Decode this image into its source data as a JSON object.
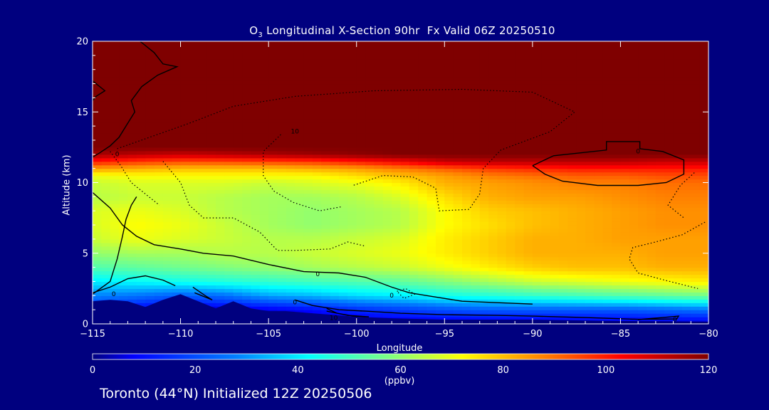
{
  "chart_data": {
    "type": "heatmap",
    "title_prefix": "O",
    "title_subscript": "3",
    "title_rest": " Longitudinal X-Section 90hr  Fx Valid 06Z 20250510",
    "xlabel": "Longitude",
    "ylabel": "Altitude (km)",
    "xlim": [
      -115,
      -80
    ],
    "ylim": [
      0,
      20
    ],
    "x_ticks": [
      -115,
      -110,
      -105,
      -100,
      -95,
      -90,
      -85,
      -80
    ],
    "x_tick_labels": [
      "−115",
      "−110",
      "−105",
      "−100",
      "−95",
      "−90",
      "−85",
      "−80"
    ],
    "y_ticks": [
      0,
      5,
      10,
      15,
      20
    ],
    "y_tick_labels": [
      "0",
      "5",
      "10",
      "15",
      "20"
    ],
    "colorbar": {
      "min": 0,
      "max": 120,
      "ticks": [
        0,
        20,
        40,
        60,
        80,
        100,
        120
      ],
      "tick_labels": [
        "0",
        "20",
        "40",
        "60",
        "80",
        "100",
        "120"
      ],
      "units": "(ppbv)",
      "stops": [
        {
          "v": 0,
          "color": "#00007f"
        },
        {
          "v": 8,
          "color": "#0000ff"
        },
        {
          "v": 28,
          "color": "#0080ff"
        },
        {
          "v": 42,
          "color": "#00ffff"
        },
        {
          "v": 58,
          "color": "#80ff80"
        },
        {
          "v": 72,
          "color": "#ffff00"
        },
        {
          "v": 88,
          "color": "#ff8000"
        },
        {
          "v": 103,
          "color": "#ff0000"
        },
        {
          "v": 120,
          "color": "#7f0000"
        }
      ]
    },
    "x_grid": [
      -115,
      -112.5,
      -110,
      -107.5,
      -105,
      -102.5,
      -100,
      -97.5,
      -95,
      -92.5,
      -90,
      -87.5,
      -85,
      -82.5,
      -80
    ],
    "y_grid": [
      0,
      1,
      2,
      3,
      4,
      5,
      6,
      7,
      8,
      9,
      10,
      10.5,
      11,
      11.5,
      12,
      12.5,
      13,
      14,
      16,
      20
    ],
    "values": [
      [
        3,
        3,
        3,
        3,
        3,
        3,
        3,
        3,
        3,
        3,
        3,
        3,
        3,
        3,
        3
      ],
      [
        12,
        6,
        3,
        4,
        6,
        9,
        14,
        17,
        20,
        22,
        22,
        22,
        22,
        24,
        26
      ],
      [
        28,
        26,
        22,
        25,
        32,
        34,
        38,
        40,
        44,
        46,
        48,
        50,
        52,
        54,
        56
      ],
      [
        40,
        42,
        44,
        46,
        48,
        50,
        52,
        54,
        58,
        62,
        66,
        68,
        70,
        72,
        74
      ],
      [
        52,
        54,
        56,
        58,
        60,
        62,
        64,
        66,
        70,
        74,
        78,
        80,
        80,
        82,
        82
      ],
      [
        60,
        62,
        62,
        64,
        64,
        66,
        68,
        70,
        74,
        78,
        82,
        82,
        82,
        84,
        84
      ],
      [
        66,
        70,
        68,
        66,
        64,
        64,
        66,
        68,
        74,
        78,
        82,
        82,
        84,
        84,
        84
      ],
      [
        68,
        72,
        70,
        66,
        62,
        60,
        62,
        64,
        72,
        76,
        80,
        82,
        84,
        86,
        86
      ],
      [
        68,
        70,
        68,
        64,
        62,
        60,
        62,
        64,
        72,
        78,
        80,
        82,
        84,
        86,
        86
      ],
      [
        64,
        66,
        66,
        64,
        62,
        62,
        64,
        68,
        76,
        82,
        84,
        84,
        86,
        88,
        88
      ],
      [
        66,
        68,
        68,
        68,
        66,
        68,
        70,
        74,
        82,
        84,
        86,
        88,
        88,
        90,
        90
      ],
      [
        70,
        72,
        72,
        72,
        72,
        72,
        76,
        80,
        84,
        88,
        90,
        92,
        92,
        94,
        94
      ],
      [
        84,
        82,
        80,
        80,
        80,
        82,
        84,
        88,
        92,
        96,
        98,
        100,
        100,
        100,
        100
      ],
      [
        100,
        96,
        94,
        94,
        95,
        96,
        100,
        104,
        110,
        112,
        112,
        112,
        112,
        110,
        110
      ],
      [
        115,
        112,
        110,
        112,
        114,
        116,
        118,
        120,
        120,
        120,
        120,
        120,
        120,
        120,
        120
      ],
      [
        120,
        120,
        120,
        120,
        120,
        120,
        120,
        120,
        120,
        120,
        120,
        120,
        120,
        120,
        120
      ],
      [
        120,
        120,
        120,
        120,
        120,
        120,
        120,
        120,
        120,
        120,
        120,
        120,
        120,
        120,
        120
      ],
      [
        120,
        120,
        120,
        120,
        120,
        120,
        120,
        120,
        120,
        120,
        120,
        120,
        120,
        120,
        120
      ],
      [
        120,
        120,
        120,
        120,
        120,
        120,
        120,
        120,
        120,
        120,
        120,
        120,
        120,
        120,
        120
      ],
      [
        120,
        120,
        120,
        120,
        120,
        120,
        120,
        120,
        120,
        120,
        120,
        120,
        120,
        120,
        120
      ]
    ],
    "terrain": [
      [
        -115,
        1.6
      ],
      [
        -114,
        1.7
      ],
      [
        -113,
        1.6
      ],
      [
        -112,
        1.2
      ],
      [
        -111,
        1.7
      ],
      [
        -110,
        2.1
      ],
      [
        -109,
        1.6
      ],
      [
        -108,
        1.1
      ],
      [
        -107,
        1.6
      ],
      [
        -106,
        1.1
      ],
      [
        -105,
        0.9
      ],
      [
        -104,
        0.9
      ],
      [
        -103,
        0.8
      ],
      [
        -102,
        0.7
      ],
      [
        -101,
        0.6
      ],
      [
        -100,
        0.5
      ],
      [
        -98,
        0.4
      ],
      [
        -95,
        0.3
      ],
      [
        -90,
        0.3
      ],
      [
        -85,
        0.2
      ],
      [
        -80,
        0.15
      ]
    ],
    "contour_labels": [
      {
        "x": -113.6,
        "y": 12.0,
        "text": "0"
      },
      {
        "x": -113.8,
        "y": 2.1,
        "text": "0"
      },
      {
        "x": -102.2,
        "y": 3.5,
        "text": "0"
      },
      {
        "x": -103.5,
        "y": 1.5,
        "text": "0"
      },
      {
        "x": -101.3,
        "y": 0.4,
        "text": "10"
      },
      {
        "x": -103.5,
        "y": 13.6,
        "text": "10"
      },
      {
        "x": -84.0,
        "y": 12.2,
        "text": "0"
      },
      {
        "x": -81.9,
        "y": 0.3,
        "text": "0"
      },
      {
        "x": -98.0,
        "y": 2.0,
        "text": "0"
      }
    ]
  },
  "footer": "Toronto (44°N) Initialized 12Z 20250506"
}
